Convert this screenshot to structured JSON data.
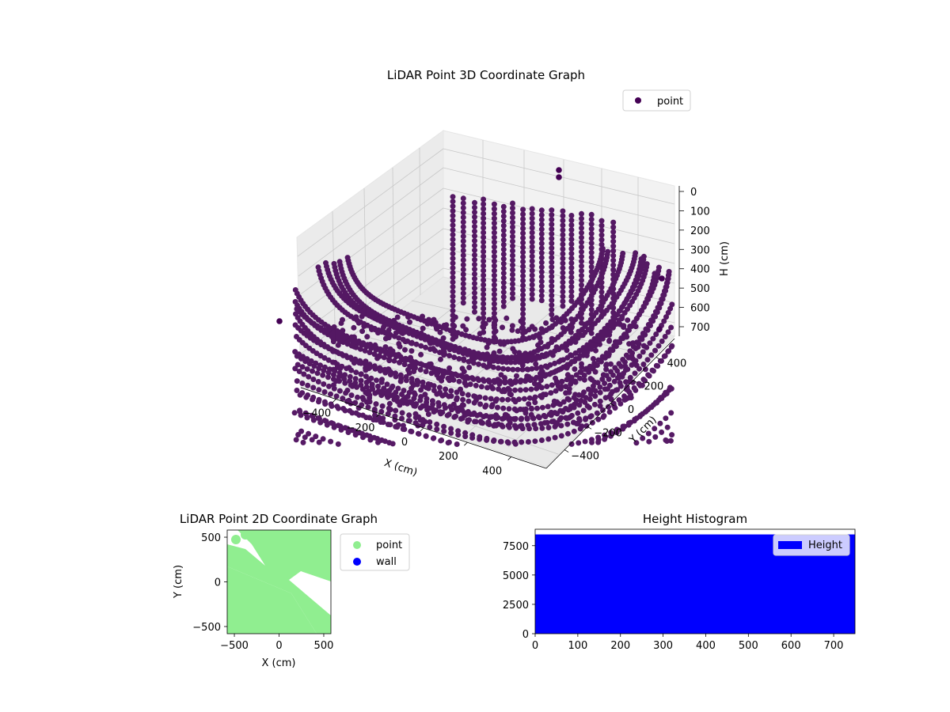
{
  "chart_data": [
    {
      "type": "scatter",
      "title": "LiDAR Point 3D Coordinate Graph",
      "xlabel": "X (cm)",
      "ylabel": "Y (cm)",
      "zlabel": "H (cm)",
      "xlim": [
        -560,
        560
      ],
      "ylim": [
        -560,
        560
      ],
      "zlim": [
        0,
        720
      ],
      "z_inverted": true,
      "xticks": [
        -400,
        -200,
        0,
        200,
        400
      ],
      "yticks": [
        -400,
        -200,
        0,
        200,
        400
      ],
      "zticks": [
        0,
        100,
        200,
        300,
        400,
        500,
        600,
        700
      ],
      "series": [
        {
          "name": "point",
          "color": "#440154",
          "values": "dense curved scan-ring point cloud"
        }
      ],
      "legend": "top-right",
      "grid": true
    },
    {
      "type": "scatter",
      "title": "LiDAR Point 2D Coordinate Graph",
      "xlabel": "X (cm)",
      "ylabel": "Y (cm)",
      "xlim": [
        -580,
        580
      ],
      "ylim": [
        -580,
        580
      ],
      "xticks": [
        -500,
        0,
        500
      ],
      "yticks": [
        -500,
        0,
        500
      ],
      "series": [
        {
          "name": "point",
          "color": "#90ee90"
        },
        {
          "name": "wall",
          "color": "#0000ff"
        }
      ],
      "legend": "outside-right",
      "grid": false
    },
    {
      "type": "bar",
      "title": "Height Histogram",
      "xlim": [
        0,
        750
      ],
      "ylim": [
        0,
        8900
      ],
      "xticks": [
        0,
        100,
        200,
        300,
        400,
        500,
        600,
        700
      ],
      "yticks": [
        0,
        2500,
        5000,
        7500
      ],
      "series": [
        {
          "name": "Height",
          "color": "#0000ff",
          "x_range": [
            0,
            750
          ],
          "value": 8460
        }
      ],
      "legend": "top-right"
    }
  ]
}
